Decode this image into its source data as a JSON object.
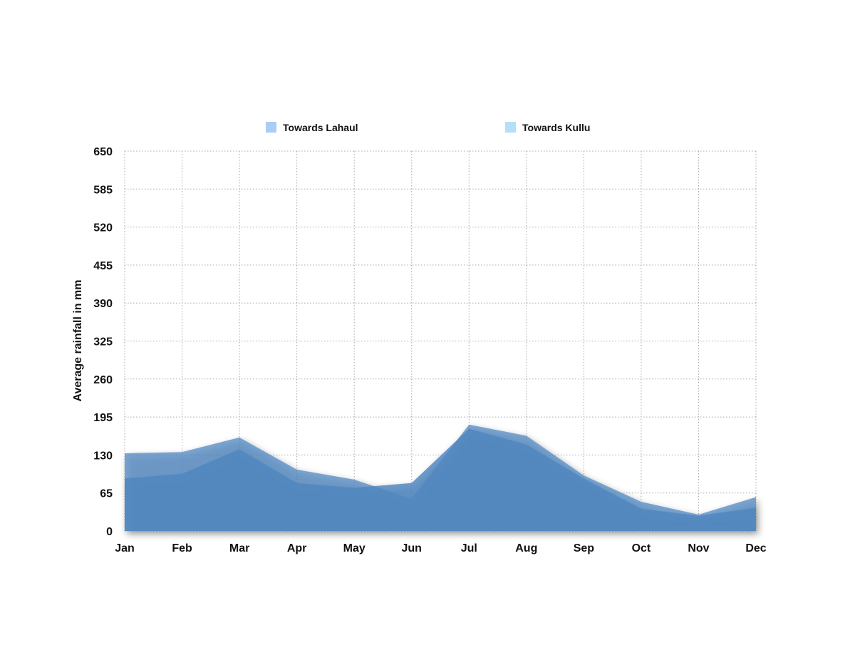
{
  "chart_data": {
    "type": "area",
    "categories": [
      "Jan",
      "Feb",
      "Mar",
      "Apr",
      "May",
      "Jun",
      "Jul",
      "Aug",
      "Sep",
      "Oct",
      "Nov",
      "Dec"
    ],
    "series": [
      {
        "name": "Towards Lahaul",
        "color": "#a9cdf7",
        "values": [
          133,
          135,
          160,
          105,
          88,
          55,
          182,
          163,
          95,
          50,
          28,
          58
        ]
      },
      {
        "name": "Towards Kullu",
        "color": "#b4e0f7",
        "values": [
          90,
          98,
          140,
          82,
          74,
          82,
          175,
          148,
          90,
          38,
          26,
          40
        ]
      }
    ],
    "xlabel": "",
    "ylabel": "Average rainfall in mm",
    "ylim": [
      0,
      650
    ],
    "yticks": [
      "0",
      "65",
      "130",
      "195",
      "260",
      "325",
      "390",
      "455",
      "520",
      "585",
      "650"
    ],
    "grid": true,
    "legend_position": "top"
  },
  "colors": {
    "area_fill": "#4f86c0",
    "grid": "#a8a8a8"
  }
}
